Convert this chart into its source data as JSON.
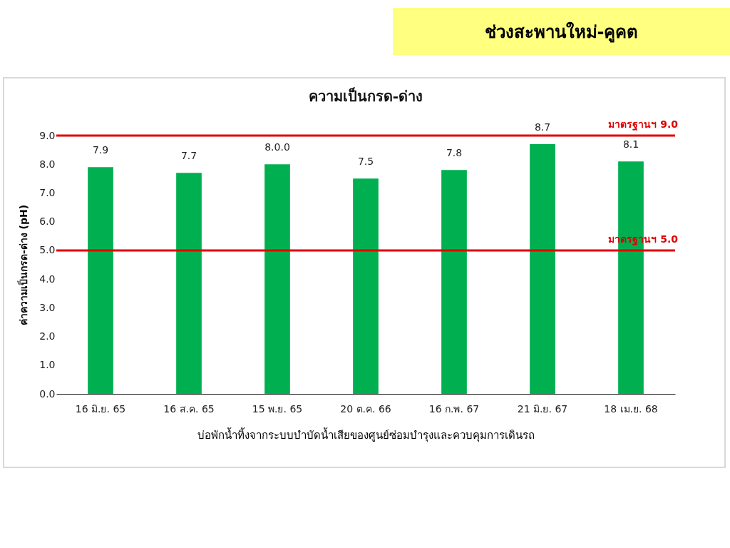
{
  "chart_data": {
    "type": "bar",
    "title": "ความเป็นกรด-ด่าง",
    "subtitle": "ช่วงสะพานใหม่-คูคต",
    "xlabel": "บ่อพักน้ำทิ้งจากระบบบำบัดน้ำเสียของศูนย์ซ่อมบำรุงและควบคุมการเดินรถ",
    "ylabel": "ค่าความเป็นกรด-ด่าง (pH)",
    "categories": [
      "16 มิ.ย. 65",
      "16 ส.ค. 65",
      "15 พ.ย. 65",
      "20 ต.ค. 66",
      "16 ก.พ. 67",
      "21 มิ.ย. 67",
      "18 เม.ย. 68"
    ],
    "values": [
      7.9,
      7.7,
      8.0,
      7.5,
      7.8,
      8.7,
      8.1
    ],
    "value_labels": [
      "7.9",
      "7.7",
      "8.0.0",
      "7.5",
      "7.8",
      "8.7",
      "8.1"
    ],
    "color": "#00b050",
    "ylim": [
      0,
      9
    ],
    "yticks": [
      {
        "value": 0,
        "label": "0.0"
      },
      {
        "value": 1,
        "label": "1.0"
      },
      {
        "value": 2,
        "label": "2.0"
      },
      {
        "value": 3,
        "label": "3.0"
      },
      {
        "value": 4,
        "label": "4.0"
      },
      {
        "value": 5,
        "label": "5.0"
      },
      {
        "value": 6,
        "label": "6.0"
      },
      {
        "value": 7,
        "label": "7.0"
      },
      {
        "value": 8,
        "label": "8.0"
      },
      {
        "value": 9,
        "label": "9.0"
      }
    ],
    "ref_lines": [
      {
        "axis": "y",
        "value": 9.0,
        "label": "มาตรฐานฯ 9.0",
        "color": "#e00000"
      },
      {
        "axis": "y",
        "value": 5.0,
        "label": "มาตรฐานฯ 5.0",
        "color": "#e00000"
      }
    ],
    "grid": false
  }
}
